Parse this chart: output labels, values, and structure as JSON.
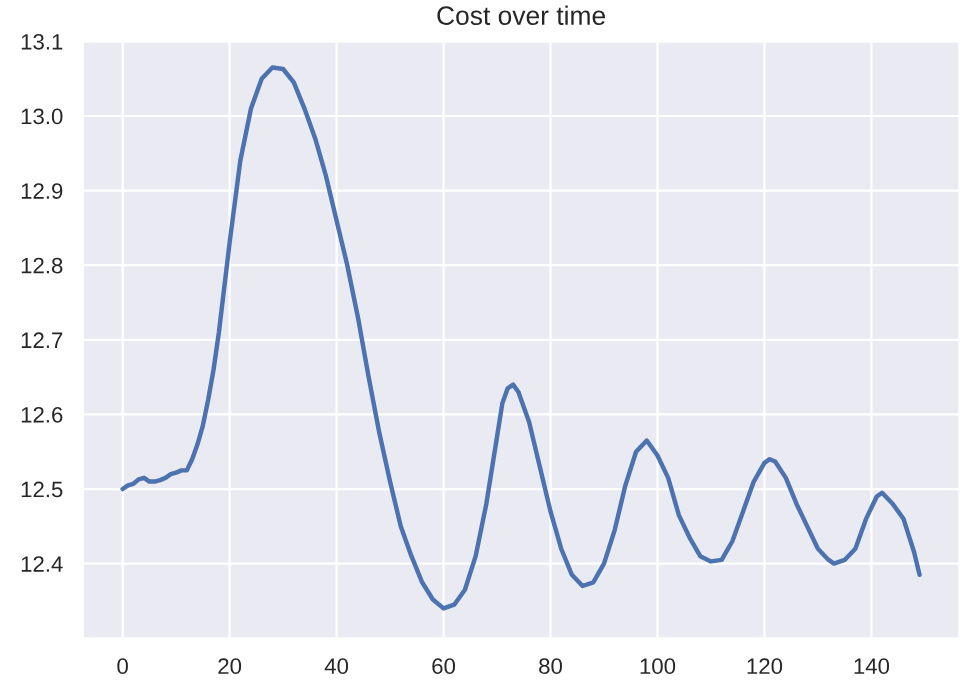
{
  "chart_data": {
    "type": "line",
    "title": "Cost over time",
    "color": "#4c72b0",
    "x": [
      0,
      1,
      2,
      3,
      4,
      5,
      6,
      7,
      8,
      9,
      10,
      11,
      12,
      13,
      14,
      15,
      16,
      17,
      18,
      19,
      20,
      22,
      24,
      26,
      28,
      30,
      32,
      34,
      36,
      38,
      40,
      42,
      44,
      46,
      48,
      50,
      52,
      54,
      56,
      58,
      60,
      62,
      64,
      66,
      68,
      70,
      71,
      72,
      73,
      74,
      76,
      78,
      80,
      82,
      84,
      86,
      88,
      90,
      92,
      94,
      96,
      98,
      100,
      102,
      104,
      106,
      108,
      110,
      112,
      114,
      116,
      118,
      120,
      121,
      122,
      124,
      126,
      128,
      130,
      132,
      133,
      135,
      137,
      139,
      141,
      142,
      144,
      146,
      148,
      149
    ],
    "values": [
      12.5,
      12.505,
      12.507,
      12.513,
      12.515,
      12.51,
      12.51,
      12.512,
      12.515,
      12.52,
      12.522,
      12.525,
      12.525,
      12.54,
      12.56,
      12.585,
      12.62,
      12.66,
      12.71,
      12.77,
      12.83,
      12.94,
      13.01,
      13.05,
      13.065,
      13.063,
      13.045,
      13.01,
      12.97,
      12.92,
      12.86,
      12.8,
      12.73,
      12.65,
      12.575,
      12.51,
      12.45,
      12.41,
      12.375,
      12.352,
      12.34,
      12.345,
      12.365,
      12.41,
      12.48,
      12.57,
      12.615,
      12.635,
      12.64,
      12.63,
      12.59,
      12.53,
      12.47,
      12.42,
      12.385,
      12.37,
      12.375,
      12.4,
      12.445,
      12.505,
      12.55,
      12.565,
      12.545,
      12.515,
      12.465,
      12.435,
      12.41,
      12.403,
      12.405,
      12.43,
      12.47,
      12.51,
      12.535,
      12.54,
      12.537,
      12.515,
      12.48,
      12.45,
      12.42,
      12.405,
      12.4,
      12.405,
      12.42,
      12.46,
      12.49,
      12.495,
      12.48,
      12.46,
      12.415,
      12.385
    ],
    "xlim": [
      -7.45,
      156.45
    ],
    "xticks": [
      0,
      20,
      40,
      60,
      80,
      100,
      120,
      140
    ],
    "ylim": [
      12.3,
      13.1
    ],
    "yticks": [
      12.4,
      12.5,
      12.6,
      12.7,
      12.8,
      12.9,
      {
        "value": 13.0,
        "label": "13.0"
      },
      13.1
    ],
    "grid": true,
    "legend": false
  }
}
